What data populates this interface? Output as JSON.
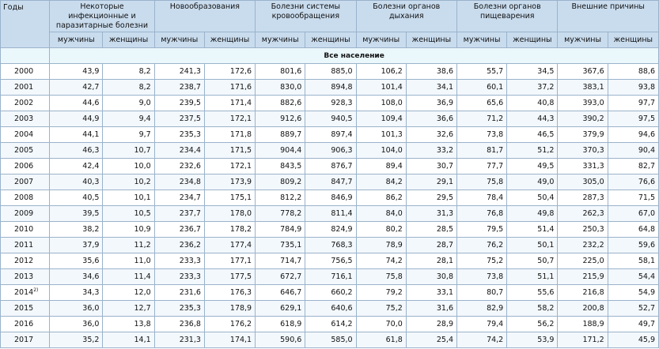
{
  "header": {
    "year_label": "Годы",
    "causes": [
      "Некоторые инфекционные и паразитарные болезни",
      "Новообразования",
      "Болезни системы кровообращения",
      "Болезни органов дыхания",
      "Болезни органов пищеварения",
      "Внешние причины"
    ],
    "male_label": "мужчины",
    "female_label": "женщины"
  },
  "section_label": "Все население",
  "rows": [
    {
      "year": "2000",
      "note": "",
      "values": [
        "43,9",
        "8,2",
        "241,3",
        "172,6",
        "801,6",
        "885,0",
        "106,2",
        "38,6",
        "55,7",
        "34,5",
        "367,6",
        "88,6"
      ]
    },
    {
      "year": "2001",
      "note": "",
      "values": [
        "42,7",
        "8,2",
        "238,7",
        "171,6",
        "830,0",
        "894,8",
        "101,4",
        "34,1",
        "60,1",
        "37,2",
        "383,1",
        "93,8"
      ]
    },
    {
      "year": "2002",
      "note": "",
      "values": [
        "44,6",
        "9,0",
        "239,5",
        "171,4",
        "882,6",
        "928,3",
        "108,0",
        "36,9",
        "65,6",
        "40,8",
        "393,0",
        "97,7"
      ]
    },
    {
      "year": "2003",
      "note": "",
      "values": [
        "44,9",
        "9,4",
        "237,5",
        "172,1",
        "912,6",
        "940,5",
        "109,4",
        "36,6",
        "71,2",
        "44,3",
        "390,2",
        "97,5"
      ]
    },
    {
      "year": "2004",
      "note": "",
      "values": [
        "44,1",
        "9,7",
        "235,3",
        "171,8",
        "889,7",
        "897,4",
        "101,3",
        "32,6",
        "73,8",
        "46,5",
        "379,9",
        "94,6"
      ]
    },
    {
      "year": "2005",
      "note": "",
      "values": [
        "46,3",
        "10,7",
        "234,4",
        "171,5",
        "904,4",
        "906,3",
        "104,0",
        "33,2",
        "81,7",
        "51,2",
        "370,3",
        "90,4"
      ]
    },
    {
      "year": "2006",
      "note": "",
      "values": [
        "42,4",
        "10,0",
        "232,6",
        "172,1",
        "843,5",
        "876,7",
        "89,4",
        "30,7",
        "77,7",
        "49,5",
        "331,3",
        "82,7"
      ]
    },
    {
      "year": "2007",
      "note": "",
      "values": [
        "40,3",
        "10,2",
        "234,8",
        "173,9",
        "809,2",
        "847,7",
        "84,2",
        "29,1",
        "75,8",
        "49,0",
        "305,0",
        "76,6"
      ]
    },
    {
      "year": "2008",
      "note": "",
      "values": [
        "40,5",
        "10,1",
        "234,7",
        "175,1",
        "812,2",
        "846,9",
        "86,2",
        "29,5",
        "78,4",
        "50,4",
        "287,3",
        "71,5"
      ]
    },
    {
      "year": "2009",
      "note": "",
      "values": [
        "39,5",
        "10,5",
        "237,7",
        "178,0",
        "778,2",
        "811,4",
        "84,0",
        "31,3",
        "76,8",
        "49,8",
        "262,3",
        "67,0"
      ]
    },
    {
      "year": "2010",
      "note": "",
      "values": [
        "38,2",
        "10,9",
        "236,7",
        "178,2",
        "784,9",
        "824,9",
        "80,2",
        "28,5",
        "79,5",
        "51,4",
        "250,3",
        "64,8"
      ]
    },
    {
      "year": "2011",
      "note": "",
      "values": [
        "37,9",
        "11,2",
        "236,2",
        "177,4",
        "735,1",
        "768,3",
        "78,9",
        "28,7",
        "76,2",
        "50,1",
        "232,2",
        "59,6"
      ]
    },
    {
      "year": "2012",
      "note": "",
      "values": [
        "35,6",
        "11,0",
        "233,3",
        "177,1",
        "714,7",
        "756,5",
        "74,2",
        "28,1",
        "75,2",
        "50,7",
        "225,0",
        "58,1"
      ]
    },
    {
      "year": "2013",
      "note": "",
      "values": [
        "34,6",
        "11,4",
        "233,3",
        "177,5",
        "672,7",
        "716,1",
        "75,8",
        "30,8",
        "73,8",
        "51,1",
        "215,9",
        "54,4"
      ]
    },
    {
      "year": "2014",
      "note": "2)",
      "values": [
        "34,3",
        "12,0",
        "231,6",
        "176,3",
        "646,7",
        "660,2",
        "79,2",
        "33,1",
        "80,7",
        "55,6",
        "216,8",
        "54,9"
      ]
    },
    {
      "year": "2015",
      "note": "",
      "values": [
        "36,0",
        "12,7",
        "235,3",
        "178,9",
        "629,1",
        "640,6",
        "75,2",
        "31,6",
        "82,9",
        "58,2",
        "200,8",
        "52,7"
      ]
    },
    {
      "year": "2016",
      "note": "",
      "values": [
        "36,0",
        "13,8",
        "236,8",
        "176,2",
        "618,9",
        "614,2",
        "70,0",
        "28,9",
        "79,4",
        "56,2",
        "188,9",
        "49,7"
      ]
    },
    {
      "year": "2017",
      "note": "",
      "values": [
        "35,2",
        "14,1",
        "231,3",
        "174,1",
        "590,6",
        "585,0",
        "61,8",
        "25,4",
        "74,2",
        "53,9",
        "171,2",
        "45,9"
      ]
    }
  ]
}
